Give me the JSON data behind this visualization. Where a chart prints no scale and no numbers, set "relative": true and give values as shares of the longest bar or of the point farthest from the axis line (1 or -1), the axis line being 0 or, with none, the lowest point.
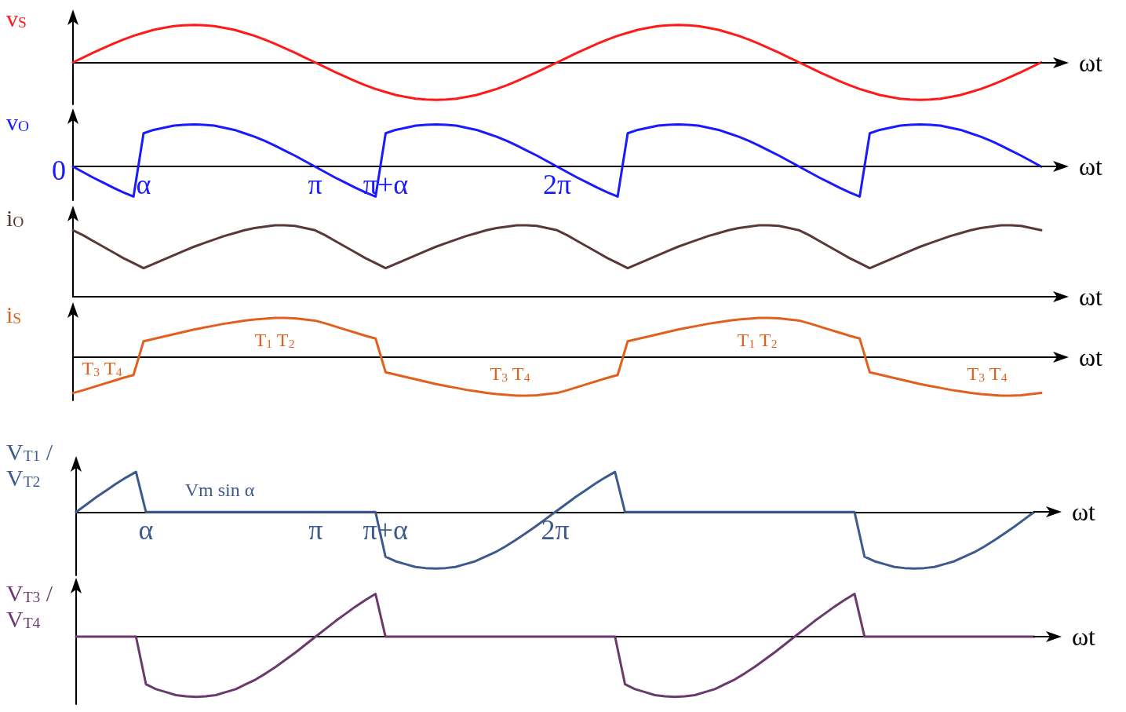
{
  "chart_data": [
    {
      "type": "line",
      "relative": true,
      "ylabel": "v$_{S}$",
      "xlabel": "ωt",
      "tick_labels": false,
      "categories": [
        null,
        null,
        null,
        null,
        null,
        null,
        null,
        null,
        null,
        null,
        null,
        null,
        null,
        null,
        null,
        null,
        null,
        null,
        null,
        null,
        null,
        null,
        null,
        null,
        null,
        null,
        null,
        null,
        null,
        null,
        null,
        null,
        null,
        null,
        null,
        null,
        null,
        null,
        null,
        null,
        null,
        null,
        null,
        null,
        null,
        null,
        null,
        null,
        null,
        null,
        null,
        null,
        null,
        null,
        null,
        null,
        null,
        null,
        null,
        null,
        null,
        null,
        null,
        null,
        null,
        null,
        null,
        null,
        null,
        null,
        null,
        null,
        null,
        null,
        null,
        null,
        null,
        null,
        null,
        null,
        null,
        null,
        null,
        null,
        null,
        null,
        null,
        null,
        null,
        null,
        null,
        null,
        null,
        null,
        null,
        null,
        null
      ],
      "series": [
        {
          "color": "#ff1a1a",
          "values": [
            0,
            0.13,
            0.26,
            0.38,
            0.5,
            0.61,
            0.71,
            0.79,
            0.87,
            0.92,
            0.97,
            0.99,
            1,
            0.99,
            0.97,
            0.92,
            0.87,
            0.79,
            0.71,
            0.61,
            0.5,
            0.38,
            0.26,
            0.13,
            0,
            -0.13,
            -0.26,
            -0.38,
            -0.5,
            -0.61,
            -0.71,
            -0.79,
            -0.87,
            -0.92,
            -0.97,
            -0.99,
            -1,
            -0.99,
            -0.97,
            -0.92,
            -0.87,
            -0.79,
            -0.71,
            -0.61,
            -0.5,
            -0.38,
            -0.26,
            -0.13,
            0,
            0.13,
            0.26,
            0.38,
            0.5,
            0.61,
            0.71,
            0.79,
            0.87,
            0.92,
            0.97,
            0.99,
            1,
            0.99,
            0.97,
            0.92,
            0.87,
            0.79,
            0.71,
            0.61,
            0.5,
            0.38,
            0.26,
            0.13,
            0,
            -0.13,
            -0.26,
            -0.38,
            -0.5,
            -0.61,
            -0.71,
            -0.79,
            -0.87,
            -0.92,
            -0.97,
            -0.99,
            -1,
            -0.99,
            -0.97,
            -0.92,
            -0.87,
            -0.79,
            -0.71,
            -0.61,
            -0.5,
            -0.38,
            -0.26,
            -0.13,
            0
          ]
        }
      ]
    },
    {
      "type": "line",
      "relative": true,
      "ylabel": "v$_{O}$",
      "xlabel": "ωt",
      "tick_labels": "x",
      "annotations": [
        "0"
      ],
      "categories": [
        null,
        null,
        null,
        null,
        null,
        null,
        null,
        "α",
        null,
        null,
        null,
        null,
        null,
        null,
        null,
        null,
        null,
        null,
        null,
        null,
        null,
        null,
        null,
        null,
        "π",
        null,
        null,
        null,
        null,
        null,
        null,
        "π+α",
        null,
        null,
        null,
        null,
        null,
        null,
        null,
        null,
        null,
        null,
        null,
        null,
        null,
        null,
        null,
        null,
        "2π",
        null,
        null,
        null,
        null,
        null,
        null,
        null,
        null,
        null,
        null,
        null,
        null,
        null,
        null,
        null,
        null,
        null,
        null,
        null,
        null,
        null,
        null,
        null,
        null,
        null,
        null,
        null,
        null,
        null,
        null,
        null,
        null,
        null,
        null,
        null,
        null,
        null,
        null,
        null,
        null,
        null,
        null,
        null,
        null,
        null,
        null,
        null,
        null
      ],
      "series": [
        {
          "color": "#1a1aff",
          "values": [
            0,
            -0.13,
            -0.26,
            -0.38,
            -0.5,
            -0.61,
            -0.71,
            0.79,
            0.87,
            0.92,
            0.97,
            0.99,
            1,
            0.99,
            0.97,
            0.92,
            0.87,
            0.79,
            0.71,
            0.61,
            0.5,
            0.38,
            0.26,
            0.13,
            0,
            -0.13,
            -0.26,
            -0.38,
            -0.5,
            -0.61,
            -0.71,
            0.79,
            0.87,
            0.92,
            0.97,
            0.99,
            1,
            0.99,
            0.97,
            0.92,
            0.87,
            0.79,
            0.71,
            0.61,
            0.5,
            0.38,
            0.26,
            0.13,
            0,
            -0.13,
            -0.26,
            -0.38,
            -0.5,
            -0.61,
            -0.71,
            0.79,
            0.87,
            0.92,
            0.97,
            0.99,
            1,
            0.99,
            0.97,
            0.92,
            0.87,
            0.79,
            0.71,
            0.61,
            0.5,
            0.38,
            0.26,
            0.13,
            0,
            -0.13,
            -0.26,
            -0.38,
            -0.5,
            -0.61,
            -0.71,
            0.79,
            0.87,
            0.92,
            0.97,
            0.99,
            1,
            0.99,
            0.97,
            0.92,
            0.87,
            0.79,
            0.71,
            0.61,
            0.5,
            0.38,
            0.26,
            0.13,
            0
          ]
        }
      ]
    },
    {
      "type": "line",
      "relative": true,
      "ylabel": "i$_{O}$",
      "xlabel": "ωt",
      "tick_labels": false,
      "categories": [
        null,
        null,
        null,
        null,
        null,
        null,
        null,
        null,
        null,
        null,
        null,
        null,
        null,
        null,
        null,
        null,
        null,
        null,
        null,
        null,
        null,
        null,
        null,
        null,
        null,
        null,
        null,
        null,
        null,
        null,
        null,
        null,
        null,
        null,
        null,
        null,
        null,
        null,
        null,
        null,
        null,
        null,
        null,
        null,
        null,
        null,
        null,
        null,
        null,
        null,
        null,
        null,
        null,
        null,
        null,
        null,
        null,
        null,
        null,
        null,
        null,
        null,
        null,
        null,
        null,
        null,
        null,
        null,
        null,
        null,
        null,
        null,
        null,
        null,
        null,
        null,
        null,
        null,
        null,
        null,
        null,
        null,
        null,
        null,
        null,
        null,
        null,
        null,
        null,
        null,
        null,
        null,
        null,
        null,
        null,
        null,
        null
      ],
      "series": [
        {
          "color": "#5a3838",
          "values": [
            0.93,
            0.86,
            0.78,
            0.7,
            0.62,
            0.54,
            0.47,
            0.4,
            0.46,
            0.52,
            0.58,
            0.64,
            0.7,
            0.75,
            0.8,
            0.85,
            0.89,
            0.93,
            0.96,
            0.98,
            1,
            1,
            0.99,
            0.96,
            0.93,
            0.86,
            0.78,
            0.7,
            0.62,
            0.54,
            0.47,
            0.4,
            0.46,
            0.52,
            0.58,
            0.64,
            0.7,
            0.75,
            0.8,
            0.85,
            0.89,
            0.93,
            0.96,
            0.98,
            1,
            1,
            0.99,
            0.96,
            0.93,
            0.86,
            0.78,
            0.7,
            0.62,
            0.54,
            0.47,
            0.4,
            0.46,
            0.52,
            0.58,
            0.64,
            0.7,
            0.75,
            0.8,
            0.85,
            0.89,
            0.93,
            0.96,
            0.98,
            1,
            1,
            0.99,
            0.96,
            0.93,
            0.86,
            0.78,
            0.7,
            0.62,
            0.54,
            0.47,
            0.4,
            0.46,
            0.52,
            0.58,
            0.64,
            0.7,
            0.75,
            0.8,
            0.85,
            0.89,
            0.93,
            0.96,
            0.98,
            1,
            1,
            0.99,
            0.96,
            0.93
          ]
        }
      ]
    },
    {
      "type": "line",
      "relative": true,
      "ylabel": "i$_{S}$",
      "xlabel": "ωt",
      "tick_labels": false,
      "annotations": [
        "T$_{3}$ T$_{4}$",
        "T$_{1}$ T$_{2}$",
        "T$_{3}$ T$_{4}$",
        "T$_{1}$ T$_{2}$",
        "T$_{3}$ T$_{4}$"
      ],
      "categories": [
        null,
        null,
        null,
        null,
        null,
        null,
        null,
        null,
        null,
        null,
        null,
        null,
        null,
        null,
        null,
        null,
        null,
        null,
        null,
        null,
        null,
        null,
        null,
        null,
        null,
        null,
        null,
        null,
        null,
        null,
        null,
        null,
        null,
        null,
        null,
        null,
        null,
        null,
        null,
        null,
        null,
        null,
        null,
        null,
        null,
        null,
        null,
        null,
        null,
        null,
        null,
        null,
        null,
        null,
        null,
        null,
        null,
        null,
        null,
        null,
        null,
        null,
        null,
        null,
        null,
        null,
        null,
        null,
        null,
        null,
        null,
        null,
        null,
        null,
        null,
        null,
        null,
        null,
        null,
        null,
        null,
        null,
        null,
        null,
        null,
        null,
        null,
        null,
        null,
        null,
        null,
        null,
        null,
        null,
        null,
        null,
        null
      ],
      "series": [
        {
          "color": "#e2601e",
          "values": [
            -0.93,
            -0.86,
            -0.78,
            -0.7,
            -0.62,
            -0.54,
            -0.47,
            0.4,
            0.46,
            0.52,
            0.58,
            0.64,
            0.7,
            0.75,
            0.8,
            0.85,
            0.89,
            0.93,
            0.96,
            0.98,
            1,
            1,
            0.99,
            0.96,
            0.93,
            0.86,
            0.78,
            0.7,
            0.62,
            0.54,
            0.47,
            -0.4,
            -0.46,
            -0.52,
            -0.58,
            -0.64,
            -0.7,
            -0.75,
            -0.8,
            -0.85,
            -0.89,
            -0.93,
            -0.96,
            -0.98,
            -1,
            -1,
            -0.99,
            -0.96,
            -0.93,
            -0.86,
            -0.78,
            -0.7,
            -0.62,
            -0.54,
            -0.47,
            0.4,
            0.46,
            0.52,
            0.58,
            0.64,
            0.7,
            0.75,
            0.8,
            0.85,
            0.89,
            0.93,
            0.96,
            0.98,
            1,
            1,
            0.99,
            0.96,
            0.93,
            0.86,
            0.78,
            0.7,
            0.62,
            0.54,
            0.47,
            -0.4,
            -0.46,
            -0.52,
            -0.58,
            -0.64,
            -0.7,
            -0.75,
            -0.8,
            -0.85,
            -0.89,
            -0.93,
            -0.96,
            -0.98,
            -1,
            -1,
            -0.99,
            -0.96,
            -0.93
          ]
        }
      ]
    },
    {
      "type": "line",
      "relative": true,
      "ylabel": "V$_{T1}$ /\nV$_{T2}$",
      "xlabel": "ωt",
      "tick_labels": "x",
      "annotations": [
        "Vm sin α"
      ],
      "categories": [
        null,
        null,
        null,
        null,
        null,
        null,
        null,
        "α",
        null,
        null,
        null,
        null,
        null,
        null,
        null,
        null,
        null,
        null,
        null,
        null,
        null,
        null,
        null,
        null,
        "π",
        null,
        null,
        null,
        null,
        null,
        null,
        "π+α",
        null,
        null,
        null,
        null,
        null,
        null,
        null,
        null,
        null,
        null,
        null,
        null,
        null,
        null,
        null,
        null,
        "2π",
        null,
        null,
        null,
        null,
        null,
        null,
        null,
        null,
        null,
        null,
        null,
        null,
        null,
        null,
        null,
        null,
        null,
        null,
        null,
        null,
        null,
        null,
        null,
        null,
        null,
        null,
        null,
        null,
        null,
        null,
        null,
        null,
        null,
        null,
        null,
        null,
        null,
        null,
        null,
        null,
        null,
        null,
        null,
        null,
        null,
        null,
        null,
        null
      ],
      "series": [
        {
          "color": "#3d5a8c",
          "values": [
            0,
            0.13,
            0.26,
            0.38,
            0.5,
            0.61,
            0.71,
            0,
            0,
            0,
            0,
            0,
            0,
            0,
            0,
            0,
            0,
            0,
            0,
            0,
            0,
            0,
            0,
            0,
            0,
            0,
            0,
            0,
            0,
            0,
            0,
            -0.79,
            -0.87,
            -0.92,
            -0.97,
            -0.99,
            -1,
            -0.99,
            -0.97,
            -0.92,
            -0.87,
            -0.79,
            -0.71,
            -0.61,
            -0.5,
            -0.38,
            -0.26,
            -0.13,
            0,
            0.13,
            0.26,
            0.38,
            0.5,
            0.61,
            0.71,
            0,
            0,
            0,
            0,
            0,
            0,
            0,
            0,
            0,
            0,
            0,
            0,
            0,
            0,
            0,
            0,
            0,
            0,
            0,
            0,
            0,
            0,
            0,
            0,
            -0.79,
            -0.87,
            -0.92,
            -0.97,
            -0.99,
            -1,
            -0.99,
            -0.97,
            -0.92,
            -0.87,
            -0.79,
            -0.71,
            -0.61,
            -0.5,
            -0.38,
            -0.26,
            -0.13,
            0
          ]
        }
      ]
    },
    {
      "type": "line",
      "relative": true,
      "ylabel": "V$_{T3}$ /\nV$_{T4}$",
      "xlabel": "ωt",
      "tick_labels": false,
      "categories": [
        null,
        null,
        null,
        null,
        null,
        null,
        null,
        null,
        null,
        null,
        null,
        null,
        null,
        null,
        null,
        null,
        null,
        null,
        null,
        null,
        null,
        null,
        null,
        null,
        null,
        null,
        null,
        null,
        null,
        null,
        null,
        null,
        null,
        null,
        null,
        null,
        null,
        null,
        null,
        null,
        null,
        null,
        null,
        null,
        null,
        null,
        null,
        null,
        null,
        null,
        null,
        null,
        null,
        null,
        null,
        null,
        null,
        null,
        null,
        null,
        null,
        null,
        null,
        null,
        null,
        null,
        null,
        null,
        null,
        null,
        null,
        null,
        null,
        null,
        null,
        null,
        null,
        null,
        null,
        null,
        null,
        null,
        null,
        null,
        null,
        null,
        null,
        null,
        null,
        null,
        null,
        null,
        null,
        null,
        null,
        null,
        null
      ],
      "series": [
        {
          "color": "#6a3a6c",
          "values": [
            0,
            0,
            0,
            0,
            0,
            0,
            0,
            -0.79,
            -0.87,
            -0.92,
            -0.97,
            -0.99,
            -1,
            -0.99,
            -0.97,
            -0.92,
            -0.87,
            -0.79,
            -0.71,
            -0.61,
            -0.5,
            -0.38,
            -0.26,
            -0.13,
            0,
            0.13,
            0.26,
            0.38,
            0.5,
            0.61,
            0.71,
            0,
            0,
            0,
            0,
            0,
            0,
            0,
            0,
            0,
            0,
            0,
            0,
            0,
            0,
            0,
            0,
            0,
            0,
            0,
            0,
            0,
            0,
            0,
            0,
            -0.79,
            -0.87,
            -0.92,
            -0.97,
            -0.99,
            -1,
            -0.99,
            -0.97,
            -0.92,
            -0.87,
            -0.79,
            -0.71,
            -0.61,
            -0.5,
            -0.38,
            -0.26,
            -0.13,
            0,
            0.13,
            0.26,
            0.38,
            0.5,
            0.61,
            0.71,
            0,
            0,
            0,
            0,
            0,
            0,
            0,
            0,
            0,
            0,
            0,
            0,
            0,
            0,
            0,
            0,
            0,
            0
          ]
        }
      ]
    }
  ]
}
